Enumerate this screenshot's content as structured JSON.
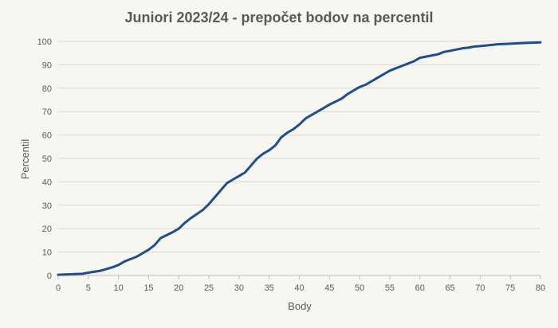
{
  "chart_data": {
    "type": "line",
    "title": "Juniori 2023/24 - prepočet bodov na percentil",
    "xlabel": "Body",
    "ylabel": "Percentil",
    "xlim": [
      0,
      80
    ],
    "ylim": [
      0,
      100
    ],
    "xticks": [
      0,
      5,
      10,
      15,
      20,
      25,
      30,
      35,
      40,
      45,
      50,
      55,
      60,
      65,
      70,
      75,
      80
    ],
    "yticks": [
      0,
      10,
      20,
      30,
      40,
      50,
      60,
      70,
      80,
      90,
      100
    ],
    "grid": true,
    "legend": "none",
    "line_color": "#1f4e8c",
    "series": [
      {
        "x": [
          0,
          2,
          4,
          5,
          7,
          9,
          10,
          11,
          13,
          15,
          16,
          17,
          19,
          20,
          21,
          22,
          24,
          25,
          26,
          28,
          29,
          30,
          31,
          32,
          33,
          34,
          35,
          36,
          37,
          38,
          39,
          40,
          41,
          42,
          43,
          44,
          45,
          47,
          48,
          49,
          50,
          51,
          52,
          53,
          55,
          56,
          57,
          58,
          59,
          60,
          62,
          63,
          64,
          65,
          66,
          67,
          68,
          69,
          70,
          72,
          73,
          75,
          77,
          79,
          80
        ],
        "y": [
          0.3,
          0.5,
          0.7,
          1.2,
          2,
          3.5,
          4.5,
          6,
          8,
          11,
          13,
          16,
          18.5,
          20,
          22.5,
          24.5,
          28,
          30.5,
          33.5,
          39.5,
          41,
          42.5,
          44,
          47,
          50,
          52,
          53.5,
          55.5,
          59,
          61,
          62.5,
          64.5,
          67,
          68.5,
          70,
          71.5,
          73,
          75.5,
          77.5,
          79,
          80.5,
          81.5,
          83,
          84.5,
          87.5,
          88.5,
          89.5,
          90.5,
          91.5,
          93,
          94,
          94.5,
          95.5,
          96,
          96.5,
          97,
          97.3,
          97.8,
          98,
          98.5,
          98.8,
          99,
          99.3,
          99.5,
          99.6
        ]
      }
    ]
  }
}
